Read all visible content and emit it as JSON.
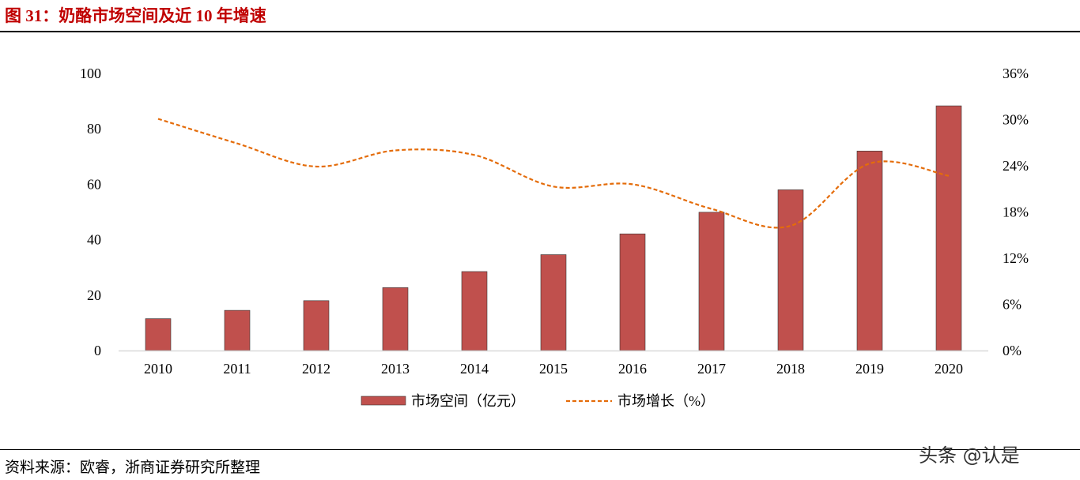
{
  "title": "图 31：奶酪市场空间及近 10 年增速",
  "source": "资料来源：欧睿，浙商证券研究所整理",
  "watermark": "头条 @认是",
  "chart_data": {
    "type": "bar+line",
    "categories": [
      "2010",
      "2011",
      "2012",
      "2013",
      "2014",
      "2015",
      "2016",
      "2017",
      "2018",
      "2019",
      "2020"
    ],
    "series": [
      {
        "name": "市场空间（亿元）",
        "type": "bar",
        "axis": "left",
        "color": "#c0504d",
        "values": [
          11.5,
          14.5,
          18.0,
          22.7,
          28.5,
          34.6,
          42.1,
          49.9,
          58.0,
          72.0,
          88.3
        ]
      },
      {
        "name": "市场增长（%）",
        "type": "line",
        "style": "dashed smooth",
        "axis": "right",
        "color": "#e46c0a",
        "values": [
          30.1,
          26.9,
          23.9,
          26.0,
          25.4,
          21.3,
          21.6,
          18.4,
          16.2,
          24.3,
          22.7
        ]
      }
    ],
    "left_axis": {
      "range": [
        0,
        100
      ],
      "ticks": [
        "0",
        "20",
        "40",
        "60",
        "80",
        "100"
      ]
    },
    "right_axis": {
      "range": [
        0,
        36
      ],
      "ticks": [
        "0%",
        "6%",
        "12%",
        "18%",
        "24%",
        "30%",
        "36%"
      ]
    },
    "legend_position": "bottom",
    "grid": false
  }
}
